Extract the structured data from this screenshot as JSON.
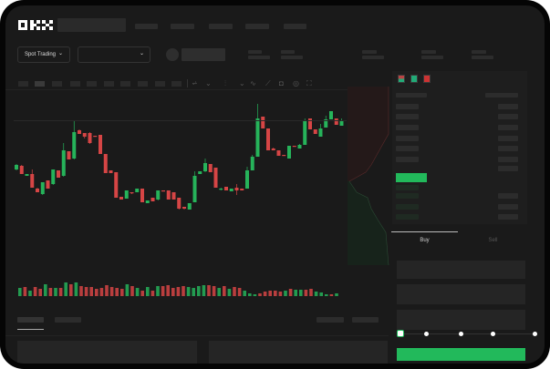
{
  "header": {
    "logo": "OKX",
    "market_select_label": "Spot Trading",
    "chevron": "⌄"
  },
  "order_form": {
    "tabs": [
      {
        "label": "Buy",
        "active": true
      },
      {
        "label": "Sell",
        "active": false
      }
    ],
    "slider_percent": 0
  },
  "colors": {
    "up": "#26b35a",
    "down": "#d64545",
    "accent": "#22b95b",
    "bg": "#1a1a1a"
  },
  "chart": {
    "candles": [
      [
        640,
        700,
        630,
        690
      ],
      [
        680,
        690,
        590,
        590
      ],
      [
        570,
        590,
        570,
        590
      ],
      [
        590,
        640,
        440,
        440
      ],
      [
        430,
        440,
        390,
        390
      ],
      [
        370,
        500,
        360,
        500
      ],
      [
        520,
        520,
        430,
        430
      ],
      [
        480,
        640,
        470,
        640
      ],
      [
        630,
        630,
        550,
        550
      ],
      [
        570,
        930,
        560,
        850
      ],
      [
        840,
        840,
        750,
        750
      ],
      [
        760,
        1180,
        750,
        1050
      ],
      [
        1070,
        1080,
        1030,
        1030
      ],
      [
        1040,
        1040,
        980,
        1000
      ],
      [
        1040,
        1050,
        920,
        930
      ],
      [
        1010,
        1010,
        1000,
        1000
      ],
      [
        1020,
        1020,
        810,
        810
      ],
      [
        810,
        810,
        600,
        600
      ],
      [
        630,
        630,
        600,
        600
      ],
      [
        610,
        610,
        330,
        330
      ],
      [
        340,
        340,
        310,
        310
      ],
      [
        320,
        410,
        320,
        410
      ],
      [
        390,
        390,
        370,
        380
      ],
      [
        390,
        430,
        390,
        430
      ],
      [
        430,
        430,
        280,
        280
      ],
      [
        270,
        300,
        270,
        300
      ],
      [
        330,
        330,
        290,
        290
      ],
      [
        310,
        410,
        300,
        410
      ],
      [
        410,
        410,
        400,
        400
      ],
      [
        410,
        410,
        310,
        310
      ],
      [
        390,
        390,
        310,
        310
      ],
      [
        330,
        330,
        200,
        210
      ],
      [
        230,
        230,
        200,
        210
      ],
      [
        200,
        270,
        200,
        270
      ],
      [
        280,
        620,
        280,
        570
      ],
      [
        590,
        620,
        590,
        620
      ],
      [
        620,
        760,
        610,
        710
      ],
      [
        700,
        700,
        610,
        610
      ],
      [
        660,
        660,
        440,
        440
      ],
      [
        430,
        440,
        410,
        430
      ],
      [
        450,
        450,
        410,
        410
      ],
      [
        400,
        430,
        400,
        430
      ],
      [
        440,
        480,
        360,
        410
      ],
      [
        430,
        430,
        410,
        410
      ],
      [
        430,
        670,
        430,
        630
      ],
      [
        630,
        800,
        630,
        780
      ],
      [
        780,
        1360,
        780,
        1200
      ],
      [
        1220,
        1220,
        1090,
        1090
      ],
      [
        1090,
        1090,
        850,
        850
      ],
      [
        870,
        880,
        850,
        850
      ],
      [
        850,
        850,
        790,
        790
      ],
      [
        800,
        800,
        790,
        790
      ],
      [
        760,
        900,
        760,
        900
      ],
      [
        900,
        900,
        890,
        890
      ],
      [
        870,
        920,
        870,
        910
      ],
      [
        910,
        1200,
        910,
        1180
      ],
      [
        1200,
        1200,
        1080,
        1080
      ],
      [
        1080,
        1080,
        1030,
        1030
      ],
      [
        1000,
        1140,
        1000,
        1090
      ],
      [
        1100,
        1230,
        1100,
        1190
      ],
      [
        1190,
        1280,
        1190,
        1280
      ],
      [
        1200,
        1200,
        1130,
        1130
      ],
      [
        1120,
        1200,
        1120,
        1180
      ]
    ],
    "volumes": [
      9,
      10,
      6,
      10,
      8,
      13,
      9,
      9,
      9,
      15,
      13,
      15,
      11,
      10,
      10,
      8,
      9,
      12,
      10,
      9,
      8,
      13,
      11,
      9,
      6,
      10,
      6,
      11,
      11,
      12,
      9,
      10,
      11,
      10,
      9,
      11,
      12,
      12,
      11,
      9,
      11,
      8,
      10,
      9,
      6,
      3,
      2,
      3,
      5,
      6,
      6,
      5,
      6,
      8,
      7,
      7,
      7,
      8,
      5,
      4,
      2,
      2,
      3
    ]
  }
}
